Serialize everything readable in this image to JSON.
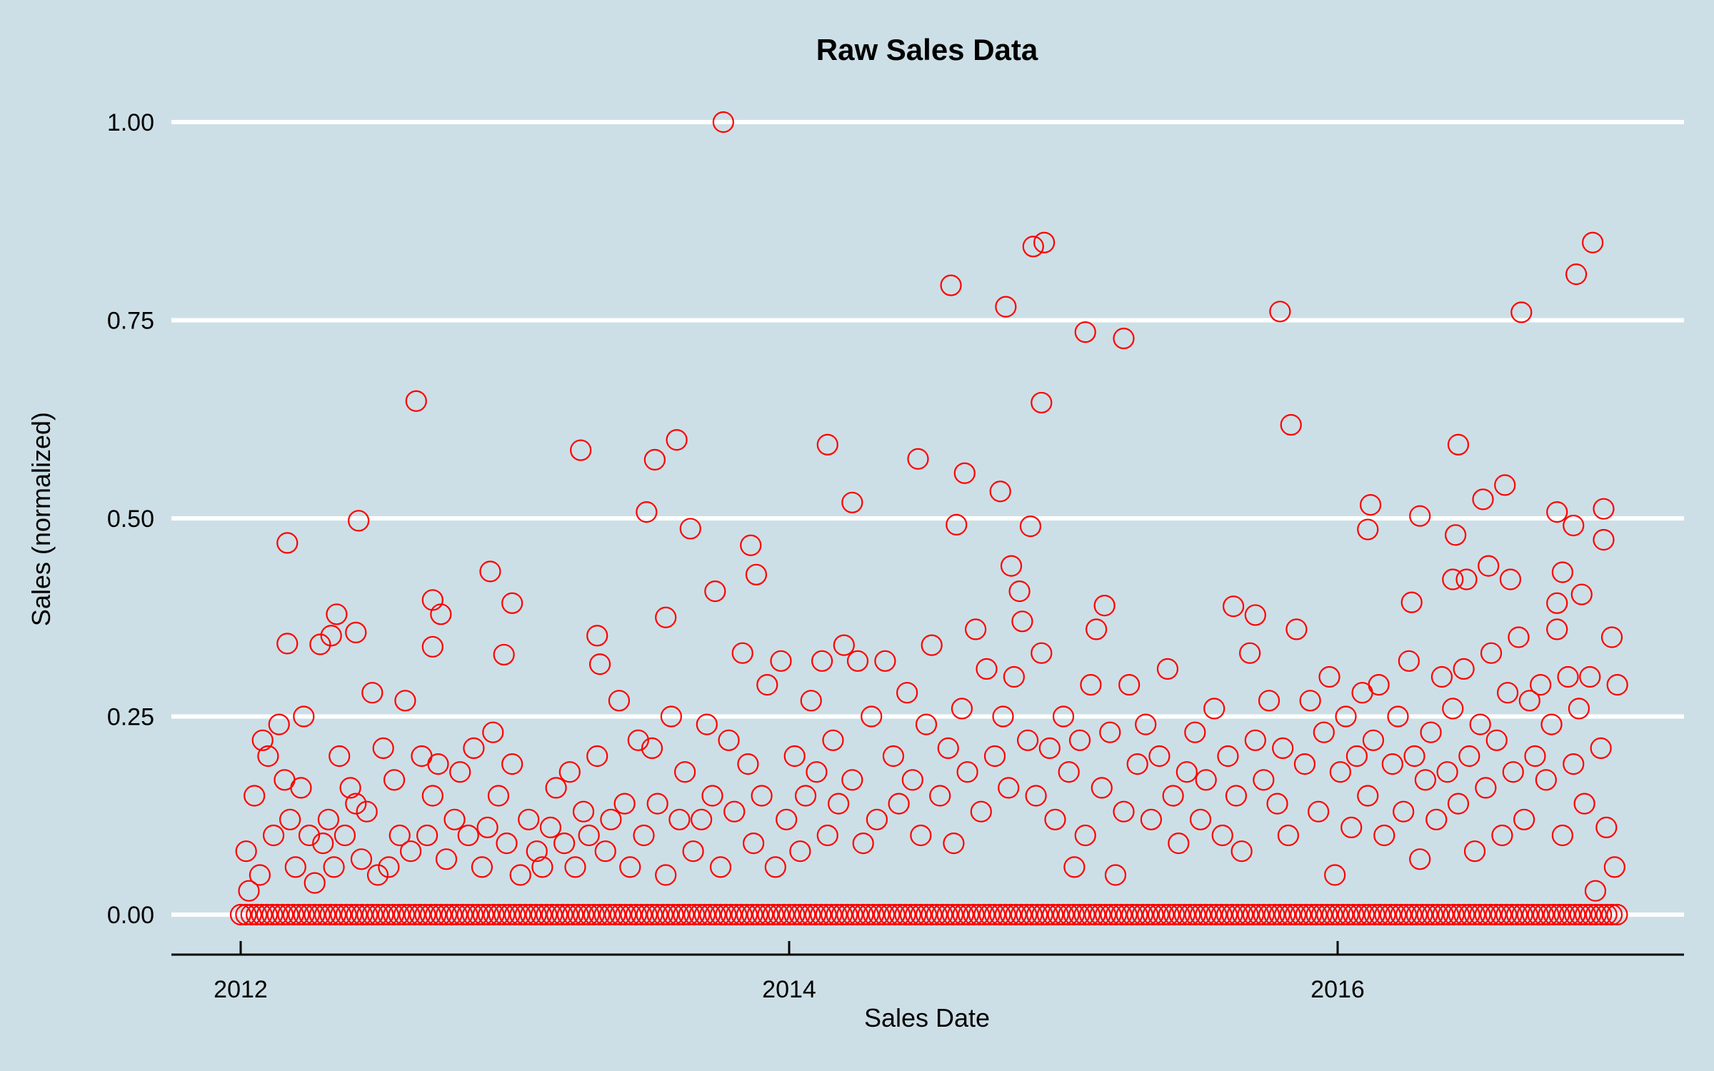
{
  "chart_data": {
    "type": "scatter",
    "title": "Raw Sales Data",
    "xlabel": "Sales Date",
    "ylabel": "Sales (normalized)",
    "xlim": [
      2011.73,
      2017.27
    ],
    "ylim": [
      -0.05,
      1.0
    ],
    "x_ticks": [
      {
        "value": 2012,
        "label": "2012"
      },
      {
        "value": 2014,
        "label": "2014"
      },
      {
        "value": 2016,
        "label": "2016"
      }
    ],
    "y_ticks": [
      {
        "value": 0,
        "label": "0.00"
      },
      {
        "value": 0.25,
        "label": "0.25"
      },
      {
        "value": 0.5,
        "label": "0.50"
      },
      {
        "value": 0.75,
        "label": "0.75"
      },
      {
        "value": 1.0,
        "label": "1.00"
      }
    ],
    "grid": "horizontal",
    "marker": "open-circle",
    "colors": {
      "background": "#cddfe6",
      "points": "#ff0000",
      "grid": "#ffffff",
      "axis": "#000000"
    },
    "zero_series": {
      "x_range": [
        2012.0,
        2017.03
      ],
      "value": 0
    },
    "points": [
      [
        2013.76,
        1.0
      ],
      [
        2014.93,
        0.848
      ],
      [
        2014.89,
        0.843
      ],
      [
        2016.93,
        0.848
      ],
      [
        2016.87,
        0.808
      ],
      [
        2014.59,
        0.794
      ],
      [
        2014.79,
        0.767
      ],
      [
        2015.79,
        0.761
      ],
      [
        2016.67,
        0.76
      ],
      [
        2015.08,
        0.735
      ],
      [
        2015.22,
        0.727
      ],
      [
        2012.64,
        0.648
      ],
      [
        2014.92,
        0.646
      ],
      [
        2015.83,
        0.618
      ],
      [
        2013.59,
        0.599
      ],
      [
        2013.24,
        0.586
      ],
      [
        2014.14,
        0.593
      ],
      [
        2016.44,
        0.593
      ],
      [
        2013.51,
        0.574
      ],
      [
        2014.47,
        0.575
      ],
      [
        2014.64,
        0.557
      ],
      [
        2014.77,
        0.534
      ],
      [
        2016.53,
        0.524
      ],
      [
        2014.23,
        0.52
      ],
      [
        2016.12,
        0.517
      ],
      [
        2013.48,
        0.508
      ],
      [
        2016.8,
        0.508
      ],
      [
        2016.97,
        0.512
      ],
      [
        2016.3,
        0.503
      ],
      [
        2016.61,
        0.542
      ],
      [
        2012.43,
        0.497
      ],
      [
        2012.17,
        0.469
      ],
      [
        2013.64,
        0.487
      ],
      [
        2014.88,
        0.49
      ],
      [
        2014.61,
        0.492
      ],
      [
        2016.11,
        0.486
      ],
      [
        2016.86,
        0.491
      ],
      [
        2016.97,
        0.473
      ],
      [
        2016.43,
        0.479
      ],
      [
        2013.86,
        0.466
      ],
      [
        2012.91,
        0.433
      ],
      [
        2013.88,
        0.429
      ],
      [
        2016.82,
        0.432
      ],
      [
        2016.55,
        0.44
      ],
      [
        2014.81,
        0.44
      ],
      [
        2016.42,
        0.423
      ],
      [
        2016.47,
        0.423
      ],
      [
        2016.63,
        0.423
      ],
      [
        2013.73,
        0.408
      ],
      [
        2014.84,
        0.408
      ],
      [
        2016.89,
        0.404
      ],
      [
        2012.7,
        0.397
      ],
      [
        2012.99,
        0.393
      ],
      [
        2015.15,
        0.39
      ],
      [
        2015.62,
        0.389
      ],
      [
        2016.27,
        0.394
      ],
      [
        2016.8,
        0.393
      ],
      [
        2012.35,
        0.379
      ],
      [
        2012.73,
        0.379
      ],
      [
        2015.7,
        0.378
      ],
      [
        2012.17,
        0.342
      ],
      [
        2012.29,
        0.341
      ],
      [
        2012.33,
        0.352
      ],
      [
        2012.42,
        0.356
      ],
      [
        2012.7,
        0.338
      ],
      [
        2012.96,
        0.328
      ],
      [
        2013.3,
        0.352
      ],
      [
        2013.31,
        0.316
      ],
      [
        2013.55,
        0.375
      ],
      [
        2012.02,
        0.08
      ],
      [
        2012.03,
        0.03
      ],
      [
        2012.05,
        0.15
      ],
      [
        2012.07,
        0.05
      ],
      [
        2012.08,
        0.22
      ],
      [
        2012.1,
        0.2
      ],
      [
        2012.12,
        0.1
      ],
      [
        2012.14,
        0.24
      ],
      [
        2012.16,
        0.17
      ],
      [
        2012.18,
        0.12
      ],
      [
        2012.2,
        0.06
      ],
      [
        2012.22,
        0.16
      ],
      [
        2012.23,
        0.25
      ],
      [
        2012.25,
        0.1
      ],
      [
        2012.27,
        0.04
      ],
      [
        2012.3,
        0.09
      ],
      [
        2012.32,
        0.12
      ],
      [
        2012.34,
        0.06
      ],
      [
        2012.36,
        0.2
      ],
      [
        2012.38,
        0.1
      ],
      [
        2012.4,
        0.16
      ],
      [
        2012.42,
        0.14
      ],
      [
        2012.44,
        0.07
      ],
      [
        2012.46,
        0.13
      ],
      [
        2012.48,
        0.28
      ],
      [
        2012.5,
        0.05
      ],
      [
        2012.52,
        0.21
      ],
      [
        2012.54,
        0.06
      ],
      [
        2012.56,
        0.17
      ],
      [
        2012.58,
        0.1
      ],
      [
        2012.6,
        0.27
      ],
      [
        2012.62,
        0.08
      ],
      [
        2012.66,
        0.2
      ],
      [
        2012.68,
        0.1
      ],
      [
        2012.7,
        0.15
      ],
      [
        2012.72,
        0.19
      ],
      [
        2012.75,
        0.07
      ],
      [
        2012.78,
        0.12
      ],
      [
        2012.8,
        0.18
      ],
      [
        2012.83,
        0.1
      ],
      [
        2012.85,
        0.21
      ],
      [
        2012.88,
        0.06
      ],
      [
        2012.9,
        0.11
      ],
      [
        2012.92,
        0.23
      ],
      [
        2012.94,
        0.15
      ],
      [
        2012.97,
        0.09
      ],
      [
        2012.99,
        0.19
      ],
      [
        2013.02,
        0.05
      ],
      [
        2013.05,
        0.12
      ],
      [
        2013.08,
        0.08
      ],
      [
        2013.1,
        0.06
      ],
      [
        2013.13,
        0.11
      ],
      [
        2013.15,
        0.16
      ],
      [
        2013.18,
        0.09
      ],
      [
        2013.2,
        0.18
      ],
      [
        2013.22,
        0.06
      ],
      [
        2013.25,
        0.13
      ],
      [
        2013.27,
        0.1
      ],
      [
        2013.3,
        0.2
      ],
      [
        2013.33,
        0.08
      ],
      [
        2013.35,
        0.12
      ],
      [
        2013.38,
        0.27
      ],
      [
        2013.4,
        0.14
      ],
      [
        2013.42,
        0.06
      ],
      [
        2013.45,
        0.22
      ],
      [
        2013.47,
        0.1
      ],
      [
        2013.5,
        0.21
      ],
      [
        2013.52,
        0.14
      ],
      [
        2013.55,
        0.05
      ],
      [
        2013.57,
        0.25
      ],
      [
        2013.6,
        0.12
      ],
      [
        2013.62,
        0.18
      ],
      [
        2013.65,
        0.08
      ],
      [
        2013.68,
        0.12
      ],
      [
        2013.7,
        0.24
      ],
      [
        2013.72,
        0.15
      ],
      [
        2013.75,
        0.06
      ],
      [
        2013.78,
        0.22
      ],
      [
        2013.8,
        0.13
      ],
      [
        2013.83,
        0.33
      ],
      [
        2013.85,
        0.19
      ],
      [
        2013.87,
        0.09
      ],
      [
        2013.9,
        0.15
      ],
      [
        2013.92,
        0.29
      ],
      [
        2013.95,
        0.06
      ],
      [
        2013.97,
        0.32
      ],
      [
        2013.99,
        0.12
      ],
      [
        2014.02,
        0.2
      ],
      [
        2014.04,
        0.08
      ],
      [
        2014.06,
        0.15
      ],
      [
        2014.08,
        0.27
      ],
      [
        2014.1,
        0.18
      ],
      [
        2014.12,
        0.32
      ],
      [
        2014.14,
        0.1
      ],
      [
        2014.16,
        0.22
      ],
      [
        2014.18,
        0.14
      ],
      [
        2014.2,
        0.34
      ],
      [
        2014.23,
        0.17
      ],
      [
        2014.25,
        0.32
      ],
      [
        2014.27,
        0.09
      ],
      [
        2014.3,
        0.25
      ],
      [
        2014.32,
        0.12
      ],
      [
        2014.35,
        0.32
      ],
      [
        2014.38,
        0.2
      ],
      [
        2014.4,
        0.14
      ],
      [
        2014.43,
        0.28
      ],
      [
        2014.45,
        0.17
      ],
      [
        2014.48,
        0.1
      ],
      [
        2014.5,
        0.24
      ],
      [
        2014.52,
        0.34
      ],
      [
        2014.55,
        0.15
      ],
      [
        2014.58,
        0.21
      ],
      [
        2014.6,
        0.09
      ],
      [
        2014.63,
        0.26
      ],
      [
        2014.65,
        0.18
      ],
      [
        2014.68,
        0.36
      ],
      [
        2014.7,
        0.13
      ],
      [
        2014.72,
        0.31
      ],
      [
        2014.75,
        0.2
      ],
      [
        2014.78,
        0.25
      ],
      [
        2014.8,
        0.16
      ],
      [
        2014.82,
        0.3
      ],
      [
        2014.85,
        0.37
      ],
      [
        2014.87,
        0.22
      ],
      [
        2014.9,
        0.15
      ],
      [
        2014.92,
        0.33
      ],
      [
        2014.95,
        0.21
      ],
      [
        2014.97,
        0.12
      ],
      [
        2015.0,
        0.25
      ],
      [
        2015.02,
        0.18
      ],
      [
        2015.04,
        0.06
      ],
      [
        2015.06,
        0.22
      ],
      [
        2015.08,
        0.1
      ],
      [
        2015.1,
        0.29
      ],
      [
        2015.12,
        0.36
      ],
      [
        2015.14,
        0.16
      ],
      [
        2015.17,
        0.23
      ],
      [
        2015.19,
        0.05
      ],
      [
        2015.22,
        0.13
      ],
      [
        2015.24,
        0.29
      ],
      [
        2015.27,
        0.19
      ],
      [
        2015.3,
        0.24
      ],
      [
        2015.32,
        0.12
      ],
      [
        2015.35,
        0.2
      ],
      [
        2015.38,
        0.31
      ],
      [
        2015.4,
        0.15
      ],
      [
        2015.42,
        0.09
      ],
      [
        2015.45,
        0.18
      ],
      [
        2015.48,
        0.23
      ],
      [
        2015.5,
        0.12
      ],
      [
        2015.52,
        0.17
      ],
      [
        2015.55,
        0.26
      ],
      [
        2015.58,
        0.1
      ],
      [
        2015.6,
        0.2
      ],
      [
        2015.63,
        0.15
      ],
      [
        2015.65,
        0.08
      ],
      [
        2015.68,
        0.33
      ],
      [
        2015.7,
        0.22
      ],
      [
        2015.73,
        0.17
      ],
      [
        2015.75,
        0.27
      ],
      [
        2015.78,
        0.14
      ],
      [
        2015.8,
        0.21
      ],
      [
        2015.82,
        0.1
      ],
      [
        2015.85,
        0.36
      ],
      [
        2015.88,
        0.19
      ],
      [
        2015.9,
        0.27
      ],
      [
        2015.93,
        0.13
      ],
      [
        2015.95,
        0.23
      ],
      [
        2015.97,
        0.3
      ],
      [
        2015.99,
        0.05
      ],
      [
        2016.01,
        0.18
      ],
      [
        2016.03,
        0.25
      ],
      [
        2016.05,
        0.11
      ],
      [
        2016.07,
        0.2
      ],
      [
        2016.09,
        0.28
      ],
      [
        2016.11,
        0.15
      ],
      [
        2016.13,
        0.22
      ],
      [
        2016.15,
        0.29
      ],
      [
        2016.17,
        0.1
      ],
      [
        2016.2,
        0.19
      ],
      [
        2016.22,
        0.25
      ],
      [
        2016.24,
        0.13
      ],
      [
        2016.26,
        0.32
      ],
      [
        2016.28,
        0.2
      ],
      [
        2016.3,
        0.07
      ],
      [
        2016.32,
        0.17
      ],
      [
        2016.34,
        0.23
      ],
      [
        2016.36,
        0.12
      ],
      [
        2016.38,
        0.3
      ],
      [
        2016.4,
        0.18
      ],
      [
        2016.42,
        0.26
      ],
      [
        2016.44,
        0.14
      ],
      [
        2016.46,
        0.31
      ],
      [
        2016.48,
        0.2
      ],
      [
        2016.5,
        0.08
      ],
      [
        2016.52,
        0.24
      ],
      [
        2016.54,
        0.16
      ],
      [
        2016.56,
        0.33
      ],
      [
        2016.58,
        0.22
      ],
      [
        2016.6,
        0.1
      ],
      [
        2016.62,
        0.28
      ],
      [
        2016.64,
        0.18
      ],
      [
        2016.66,
        0.35
      ],
      [
        2016.68,
        0.12
      ],
      [
        2016.7,
        0.27
      ],
      [
        2016.72,
        0.2
      ],
      [
        2016.74,
        0.29
      ],
      [
        2016.76,
        0.17
      ],
      [
        2016.78,
        0.24
      ],
      [
        2016.8,
        0.36
      ],
      [
        2016.82,
        0.1
      ],
      [
        2016.84,
        0.3
      ],
      [
        2016.86,
        0.19
      ],
      [
        2016.88,
        0.26
      ],
      [
        2016.9,
        0.14
      ],
      [
        2016.92,
        0.3
      ],
      [
        2016.94,
        0.03
      ],
      [
        2016.96,
        0.21
      ],
      [
        2016.98,
        0.11
      ],
      [
        2017.0,
        0.35
      ],
      [
        2017.01,
        0.06
      ],
      [
        2017.02,
        0.29
      ]
    ]
  }
}
